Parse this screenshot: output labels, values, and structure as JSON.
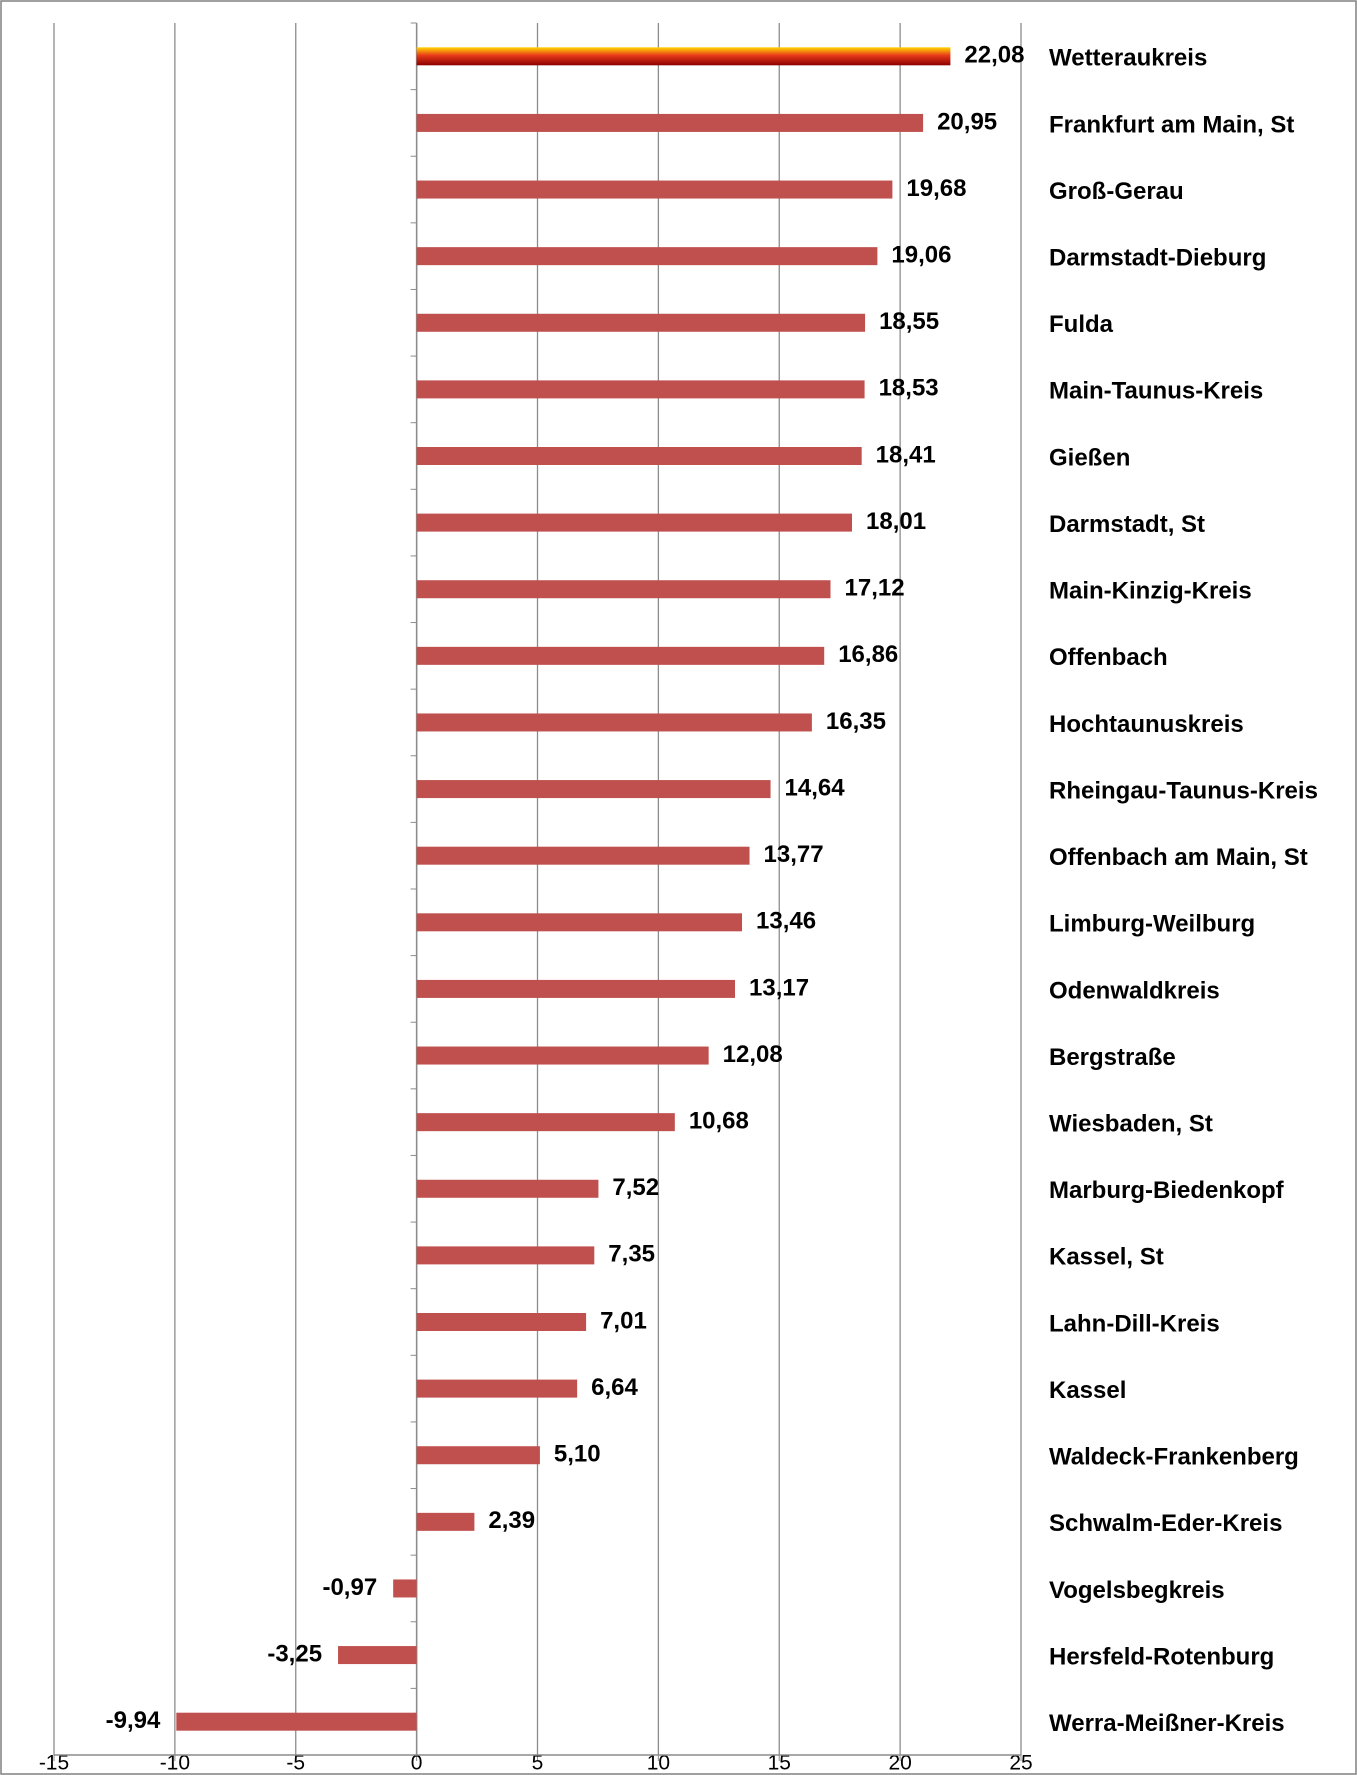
{
  "chart_data": {
    "type": "hbar",
    "categories": [
      "Wetteraukreis",
      "Frankfurt am Main, St",
      "Groß-Gerau",
      "Darmstadt-Dieburg",
      "Fulda",
      "Main-Taunus-Kreis",
      "Gießen",
      "Darmstadt, St",
      "Main-Kinzig-Kreis",
      "Offenbach",
      "Hochtaunuskreis",
      "Rheingau-Taunus-Kreis",
      "Offenbach am Main, St",
      "Limburg-Weilburg",
      "Odenwaldkreis",
      "Bergstraße",
      "Wiesbaden, St",
      "Marburg-Biedenkopf",
      "Kassel, St",
      "Lahn-Dill-Kreis",
      "Kassel",
      "Waldeck-Frankenberg",
      "Schwalm-Eder-Kreis",
      "Vogelsbegkreis",
      "Hersfeld-Rotenburg",
      "Werra-Meißner-Kreis"
    ],
    "values": [
      22.08,
      20.95,
      19.68,
      19.06,
      18.55,
      18.53,
      18.41,
      18.01,
      17.12,
      16.86,
      16.35,
      14.64,
      13.77,
      13.46,
      13.17,
      12.08,
      10.68,
      7.52,
      7.35,
      7.01,
      6.64,
      5.1,
      2.39,
      -0.97,
      -3.25,
      -9.94
    ],
    "value_labels": [
      "22,08",
      "20,95",
      "19,68",
      "19,06",
      "18,55",
      "18,53",
      "18,41",
      "18,01",
      "17,12",
      "16,86",
      "16,35",
      "14,64",
      "13,77",
      "13,46",
      "13,17",
      "12,08",
      "10,68",
      "7,52",
      "7,35",
      "7,01",
      "6,64",
      "5,10",
      "2,39",
      "-0,97",
      "-3,25",
      "-9,94"
    ],
    "color": "#c0504d",
    "highlight_index": 0,
    "xlim": [
      -15,
      25
    ],
    "xticks": [
      -15,
      -10,
      -5,
      0,
      5,
      10,
      15,
      20,
      25
    ],
    "grid": true
  }
}
